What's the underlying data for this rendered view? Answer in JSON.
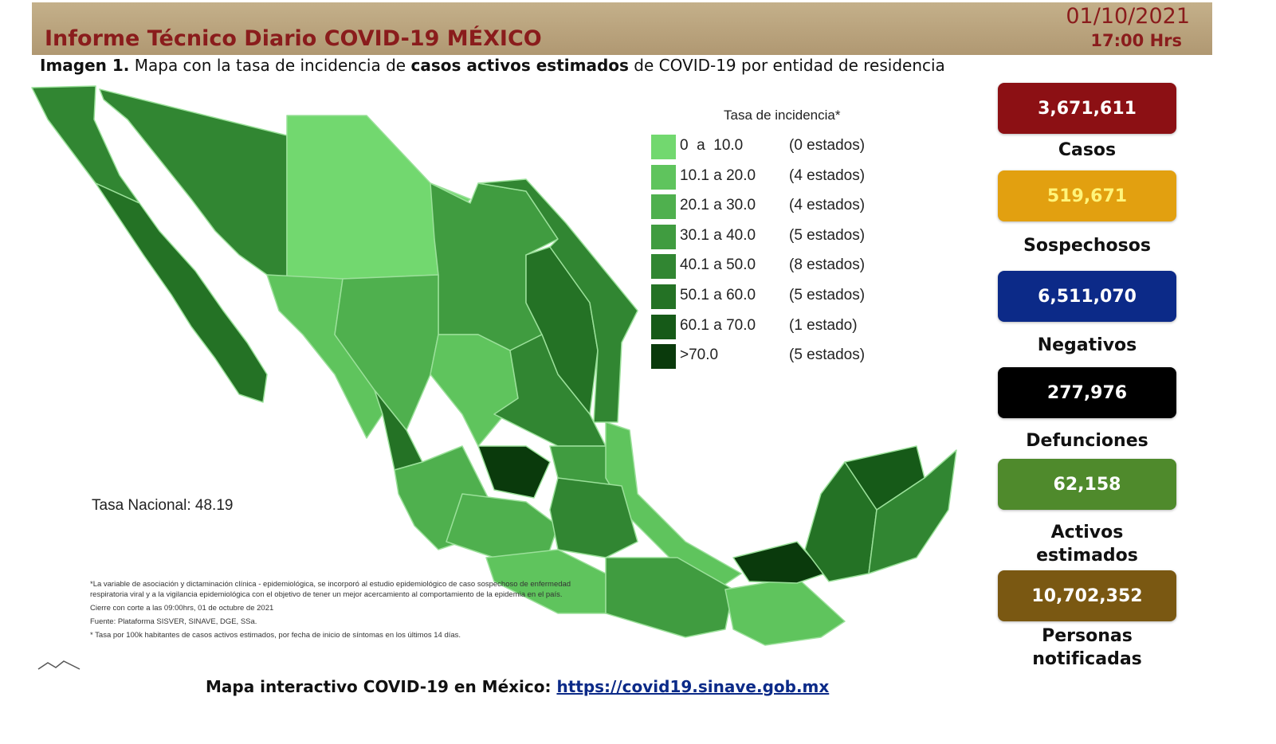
{
  "header": {
    "title": "Informe Técnico Diario COVID-19 MÉXICO",
    "date": "01/10/2021",
    "time": "17:00 Hrs"
  },
  "subtitle": {
    "label": "Imagen 1.",
    "part1": "Mapa con la tasa de incidencia de",
    "emphasis": "casos activos estimados",
    "part2": "de COVID-19 por entidad de residencia"
  },
  "legend": {
    "title": "Tasa de incidencia*",
    "items": [
      {
        "range": "0  a  10.0",
        "count": "(0 estados)",
        "color": "#72d86f"
      },
      {
        "range": "10.1 a 20.0",
        "count": "(4 estados)",
        "color": "#5fc45d"
      },
      {
        "range": "20.1 a 30.0",
        "count": "(4 estados)",
        "color": "#4fb04e"
      },
      {
        "range": "30.1 a 40.0",
        "count": "(5 estados)",
        "color": "#409c40"
      },
      {
        "range": "40.1 a 50.0",
        "count": "(8 estados)",
        "color": "#318632"
      },
      {
        "range": "50.1 a 60.0",
        "count": "(5 estados)",
        "color": "#247225"
      },
      {
        "range": "60.1 a 70.0",
        "count": "(1 estado)",
        "color": "#165a18"
      },
      {
        "range": ">70.0",
        "count": "(5 estados)",
        "color": "#0a3a0c"
      }
    ]
  },
  "national_rate": "Tasa Nacional: 48.19",
  "notes": [
    "*La variable de asociación y dictaminación clínica - epidemiológica, se incorporó al estudio epidemiológico de caso sospechoso de enfermedad respiratoria viral y a la vigilancia epidemiológica con el objetivo de tener un mejor acercamiento al comportamiento de la epidemia en el país.",
    "Cierre con corte a las 09:00hrs, 01 de octubre de 2021",
    "Fuente: Plataforma SISVER, SINAVE, DGE, SSa.",
    "* Tasa por 100k habitantes de casos activos estimados, por fecha de inicio de síntomas en los últimos 14 días."
  ],
  "stats": [
    {
      "value": "3,671,611",
      "label": "Casos",
      "color": "#8c1014",
      "text_color": "#ffffff"
    },
    {
      "value": "519,671",
      "label": "Sospechosos",
      "color": "#e2a010",
      "text_color": "#fff47a"
    },
    {
      "value": "6,511,070",
      "label": "Negativos",
      "color": "#0c2a88",
      "text_color": "#ffffff"
    },
    {
      "value": "277,976",
      "label": "Defunciones",
      "color": "#000000",
      "text_color": "#ffffff"
    },
    {
      "value": "62,158",
      "label": "Activos estimados",
      "color": "#4f8a2c",
      "text_color": "#ffffff"
    },
    {
      "value": "10,702,352",
      "label": "Personas notificadas",
      "color": "#7a5812",
      "text_color": "#ffffff"
    }
  ],
  "footer": {
    "text": "Mapa interactivo COVID-19 en México:",
    "link": "https://covid19.sinave.gob.mx"
  }
}
